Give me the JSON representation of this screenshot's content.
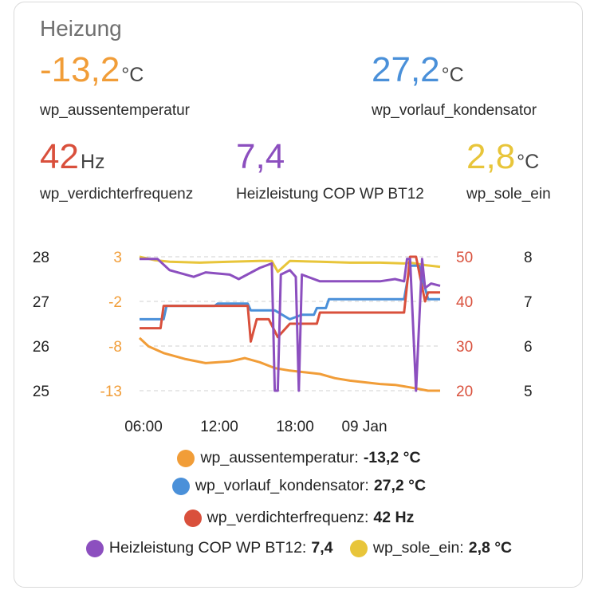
{
  "card": {
    "title": "Heizung"
  },
  "stats": [
    {
      "value": "-13,2",
      "unit": "°C",
      "name": "wp_aussentemperatur",
      "color": "#f19d38"
    },
    {
      "value": "27,2",
      "unit": "°C",
      "name": "wp_vorlauf_kondensator",
      "color": "#4a90d9"
    },
    {
      "value": "42",
      "unit": "Hz",
      "name": "wp_verdichterfrequenz",
      "color": "#d9503c"
    },
    {
      "value": "7,4",
      "unit": "",
      "name": "Heizleistung COP WP BT12",
      "color": "#8c4fbf"
    },
    {
      "value": "2,8",
      "unit": "°C",
      "name": "wp_sole_ein",
      "color": "#e8c53a"
    }
  ],
  "chart_data": {
    "type": "line",
    "x_ticks": [
      "06:00",
      "12:00",
      "18:00",
      "09 Jan"
    ],
    "axes": {
      "axis_blue": {
        "ticks": [
          "28",
          "27",
          "26",
          "25"
        ],
        "range": [
          25,
          28
        ]
      },
      "axis_orange": {
        "ticks": [
          "3",
          "-2",
          "-8",
          "-13"
        ],
        "range": [
          -13,
          3
        ],
        "color": "#f19d38"
      },
      "axis_red": {
        "ticks": [
          "50",
          "40",
          "30",
          "20"
        ],
        "range": [
          20,
          50
        ],
        "color": "#d9503c"
      },
      "axis_purple": {
        "ticks": [
          "8",
          "7",
          "6",
          "5"
        ],
        "range": [
          5,
          8
        ]
      }
    },
    "series": [
      {
        "name": "wp_sole_ein",
        "color": "#e8c53a",
        "axis": "axis_orange",
        "x": [
          0,
          0.05,
          0.1,
          0.2,
          0.3,
          0.4,
          0.44,
          0.46,
          0.5,
          0.6,
          0.7,
          0.8,
          0.88,
          0.9,
          0.95,
          1.0
        ],
        "y": [
          3,
          2.6,
          2.4,
          2.3,
          2.4,
          2.5,
          2.5,
          1.2,
          2.5,
          2.4,
          2.3,
          2.3,
          2.2,
          2.3,
          2.0,
          1.8
        ]
      },
      {
        "name": "wp_aussentemperatur",
        "color": "#f19d38",
        "axis": "axis_orange",
        "x": [
          0,
          0.03,
          0.08,
          0.15,
          0.22,
          0.3,
          0.35,
          0.4,
          0.45,
          0.5,
          0.55,
          0.6,
          0.65,
          0.7,
          0.75,
          0.8,
          0.85,
          0.9,
          0.93,
          0.96,
          1.0
        ],
        "y": [
          -6.7,
          -7.7,
          -8.5,
          -9.2,
          -9.7,
          -9.5,
          -9.1,
          -9.6,
          -10.3,
          -10.6,
          -10.8,
          -11.0,
          -11.5,
          -11.8,
          -12.0,
          -12.2,
          -12.3,
          -12.6,
          -12.8,
          -13.2,
          -13.1
        ]
      },
      {
        "name": "wp_vorlauf_kondensator",
        "color": "#4a90d9",
        "axis": "axis_blue",
        "x": [
          0,
          0.08,
          0.09,
          0.25,
          0.26,
          0.36,
          0.37,
          0.45,
          0.5,
          0.54,
          0.58,
          0.59,
          0.62,
          0.63,
          0.88,
          0.9,
          0.93,
          0.96,
          1.0
        ],
        "y": [
          26.6,
          26.6,
          26.9,
          26.9,
          26.95,
          26.95,
          26.8,
          26.8,
          26.6,
          26.7,
          26.7,
          26.85,
          26.85,
          27.05,
          27.05,
          27.8,
          27.8,
          27.05,
          27.05
        ]
      },
      {
        "name": "wp_verdichterfrequenz",
        "color": "#d9503c",
        "axis": "axis_red",
        "x": [
          0,
          0.07,
          0.08,
          0.36,
          0.37,
          0.39,
          0.43,
          0.46,
          0.5,
          0.53,
          0.59,
          0.6,
          0.88,
          0.9,
          0.92,
          0.95,
          0.96,
          1.0
        ],
        "y": [
          34,
          34,
          39,
          39,
          31,
          36,
          36,
          32,
          35,
          35,
          35,
          37.5,
          37.5,
          50,
          50,
          40,
          42,
          42
        ]
      },
      {
        "name": "Heizleistung COP WP BT12",
        "color": "#8c4fbf",
        "axis": "axis_purple",
        "x": [
          0,
          0.06,
          0.1,
          0.18,
          0.22,
          0.3,
          0.33,
          0.4,
          0.44,
          0.45,
          0.46,
          0.47,
          0.5,
          0.52,
          0.53,
          0.54,
          0.6,
          0.7,
          0.8,
          0.85,
          0.88,
          0.89,
          0.9,
          0.92,
          0.94,
          0.95,
          0.97,
          1.0
        ],
        "y": [
          7.95,
          7.95,
          7.7,
          7.55,
          7.65,
          7.6,
          7.5,
          7.75,
          7.85,
          5.0,
          5.0,
          7.6,
          7.7,
          7.55,
          5.0,
          7.6,
          7.45,
          7.45,
          7.45,
          7.5,
          7.45,
          7.95,
          7.95,
          5.0,
          7.95,
          7.3,
          7.4,
          7.35
        ]
      }
    ]
  },
  "legend": [
    {
      "label": "wp_aussentemperatur:",
      "value": "-13,2 °C",
      "color": "#f19d38"
    },
    {
      "label": "wp_vorlauf_kondensator:",
      "value": "27,2 °C",
      "color": "#4a90d9"
    },
    {
      "label": "wp_verdichterfrequenz:",
      "value": "42 Hz",
      "color": "#d9503c"
    },
    {
      "label": "Heizleistung COP WP BT12:",
      "value": "7,4",
      "color": "#8c4fbf"
    },
    {
      "label": "wp_sole_ein:",
      "value": "2,8 °C",
      "color": "#e8c53a"
    }
  ]
}
